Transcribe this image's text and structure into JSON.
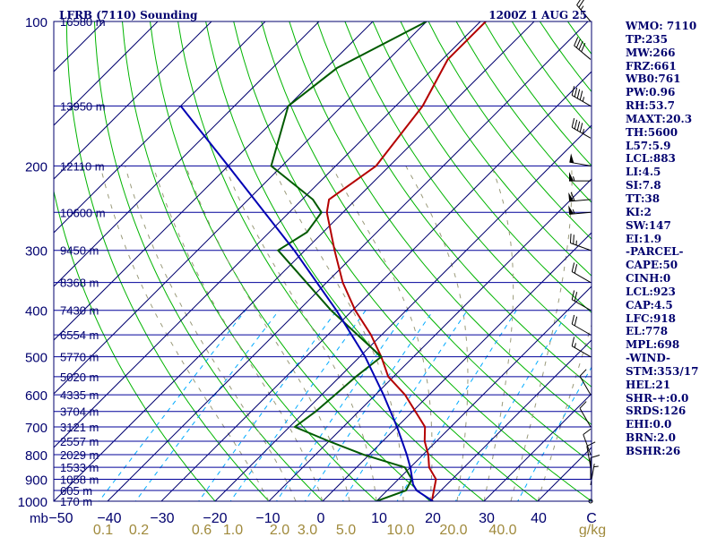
{
  "header": {
    "station_title": "LFRB (7110) Sounding",
    "time_label": "1200Z  1 AUG 25"
  },
  "indices": [
    "WMO: 7110",
    "TP:235",
    "MW:266",
    "FRZ:661",
    "WB0:761",
    "PW:0.96",
    "RH:53.7",
    "MAXT:20.3",
    "TH:5600",
    "L57:5.9",
    "LCL:883",
    "LI:4.5",
    "SI:7.8",
    "TT:38",
    "KI:2",
    "SW:147",
    "EI:1.9",
    "-PARCEL-",
    "CAPE:50",
    "CINH:0",
    "LCL:923",
    "CAP:4.5",
    "LFC:918",
    "EL:778",
    "MPL:698",
    "-WIND-",
    "STM:353/17",
    "HEL:21",
    "SHR-+:0.0",
    "SRDS:126",
    "EHI:0.0",
    "BRN:2.0",
    "BSHR:26"
  ],
  "colors": {
    "frame": "#00006e",
    "isobar": "#00009a",
    "isotherm": "#00006e",
    "dry_adiabat": "#00b400",
    "moist_adiabat": "#9a9a7a",
    "mixing_ratio": "#00aaff",
    "temperature": "#b40000",
    "dewpoint": "#005a00",
    "parcel": "#0000b4",
    "wind": "#000000",
    "mixing_label": "#a08a3c"
  },
  "chart_data": {
    "type": "skew-t log-p sounding",
    "axes": {
      "pressure_range_mb": [
        1000,
        100
      ],
      "temperature_range_c": [
        -50,
        50
      ],
      "pressure_unit": "mb",
      "mixing_ratio_unit": "g/kg"
    },
    "pressure_labels": [
      100,
      200,
      300,
      400,
      500,
      600,
      700,
      800,
      900,
      1000
    ],
    "temperature_ticks": [
      "−50",
      "−40",
      "−30",
      "−20",
      "−10",
      "0",
      "10",
      "20",
      "30",
      "40",
      "C"
    ],
    "mixing_ratio_labels": [
      "0.1",
      "0.2",
      "0.6",
      "1.0",
      "2.0",
      "3.0",
      "5.0",
      "10.0",
      "20.0",
      "40.0"
    ],
    "height_levels": [
      {
        "p": 100,
        "label": "16580 m"
      },
      {
        "p": 150,
        "label": "13950 m"
      },
      {
        "p": 200,
        "label": "12110 m"
      },
      {
        "p": 250,
        "label": "10600 m"
      },
      {
        "p": 300,
        "label": "9450 m"
      },
      {
        "p": 350,
        "label": "8368 m"
      },
      {
        "p": 400,
        "label": "7430 m"
      },
      {
        "p": 450,
        "label": "6554 m"
      },
      {
        "p": 500,
        "label": "5770 m"
      },
      {
        "p": 550,
        "label": "5020 m"
      },
      {
        "p": 600,
        "label": "4335 m"
      },
      {
        "p": 650,
        "label": "3704 m"
      },
      {
        "p": 700,
        "label": "3121 m"
      },
      {
        "p": 750,
        "label": "2557 m"
      },
      {
        "p": 800,
        "label": "2029 m"
      },
      {
        "p": 850,
        "label": "1533 m"
      },
      {
        "p": 900,
        "label": "1058 m"
      },
      {
        "p": 950,
        "label": "605 m"
      },
      {
        "p": 1000,
        "label": "170 m"
      }
    ],
    "series": [
      {
        "id": "temperature",
        "points": [
          {
            "p": 1000,
            "t": 20.3
          },
          {
            "p": 900,
            "t": 17.0
          },
          {
            "p": 850,
            "t": 13.5
          },
          {
            "p": 800,
            "t": 11.0
          },
          {
            "p": 750,
            "t": 7.8
          },
          {
            "p": 700,
            "t": 5.2
          },
          {
            "p": 600,
            "t": -4.5
          },
          {
            "p": 550,
            "t": -11.0
          },
          {
            "p": 500,
            "t": -16.0
          },
          {
            "p": 450,
            "t": -22.0
          },
          {
            "p": 400,
            "t": -29.5
          },
          {
            "p": 350,
            "t": -37.0
          },
          {
            "p": 300,
            "t": -44.5
          },
          {
            "p": 250,
            "t": -53.0
          },
          {
            "p": 235,
            "t": -55.0
          },
          {
            "p": 200,
            "t": -52.5
          },
          {
            "p": 150,
            "t": -55.0
          },
          {
            "p": 120,
            "t": -59.0
          },
          {
            "p": 100,
            "t": -59.0
          }
        ]
      },
      {
        "id": "dewpoint",
        "points": [
          {
            "p": 1000,
            "t": 10.0
          },
          {
            "p": 950,
            "t": 13.5
          },
          {
            "p": 900,
            "t": 12.5
          },
          {
            "p": 850,
            "t": 9.0
          },
          {
            "p": 800,
            "t": -1.0
          },
          {
            "p": 750,
            "t": -10.0
          },
          {
            "p": 700,
            "t": -19.0
          },
          {
            "p": 650,
            "t": -18.0
          },
          {
            "p": 600,
            "t": -17.5
          },
          {
            "p": 550,
            "t": -17.0
          },
          {
            "p": 500,
            "t": -16.0
          },
          {
            "p": 400,
            "t": -34.0
          },
          {
            "p": 300,
            "t": -55.0
          },
          {
            "p": 275,
            "t": -53.0
          },
          {
            "p": 250,
            "t": -54.0
          },
          {
            "p": 235,
            "t": -58.0
          },
          {
            "p": 200,
            "t": -72.0
          },
          {
            "p": 150,
            "t": -80.0
          },
          {
            "p": 125,
            "t": -78.0
          },
          {
            "p": 100,
            "t": -70.0
          }
        ]
      },
      {
        "id": "parcel",
        "points": [
          {
            "p": 1000,
            "t": 20.5
          },
          {
            "p": 950,
            "t": 15.5
          },
          {
            "p": 923,
            "t": 13.7
          },
          {
            "p": 850,
            "t": 10.0
          },
          {
            "p": 800,
            "t": 7.0
          },
          {
            "p": 700,
            "t": 0.0
          },
          {
            "p": 600,
            "t": -8.5
          },
          {
            "p": 500,
            "t": -19.0
          },
          {
            "p": 400,
            "t": -33.0
          },
          {
            "p": 300,
            "t": -52.0
          },
          {
            "p": 200,
            "t": -80.0
          },
          {
            "p": 150,
            "t": -100.0
          }
        ]
      }
    ],
    "wind_barbs": [
      {
        "p": 100,
        "dir": 320,
        "spd": 25
      },
      {
        "p": 120,
        "dir": 310,
        "spd": 40
      },
      {
        "p": 150,
        "dir": 300,
        "spd": 45
      },
      {
        "p": 175,
        "dir": 300,
        "spd": 45
      },
      {
        "p": 200,
        "dir": 280,
        "spd": 50
      },
      {
        "p": 215,
        "dir": 270,
        "spd": 55
      },
      {
        "p": 235,
        "dir": 265,
        "spd": 60
      },
      {
        "p": 250,
        "dir": 265,
        "spd": 55
      },
      {
        "p": 300,
        "dir": 290,
        "spd": 25
      },
      {
        "p": 350,
        "dir": 300,
        "spd": 20
      },
      {
        "p": 400,
        "dir": 300,
        "spd": 20
      },
      {
        "p": 450,
        "dir": 300,
        "spd": 20
      },
      {
        "p": 500,
        "dir": 300,
        "spd": 15
      },
      {
        "p": 600,
        "dir": 330,
        "spd": 10
      },
      {
        "p": 700,
        "dir": 330,
        "spd": 10
      },
      {
        "p": 800,
        "dir": 340,
        "spd": 10
      },
      {
        "p": 850,
        "dir": 350,
        "spd": 10
      },
      {
        "p": 900,
        "dir": 360,
        "spd": 10
      },
      {
        "p": 925,
        "dir": 10,
        "spd": 5
      },
      {
        "p": 1000,
        "dir": 0,
        "spd": 0
      }
    ]
  }
}
